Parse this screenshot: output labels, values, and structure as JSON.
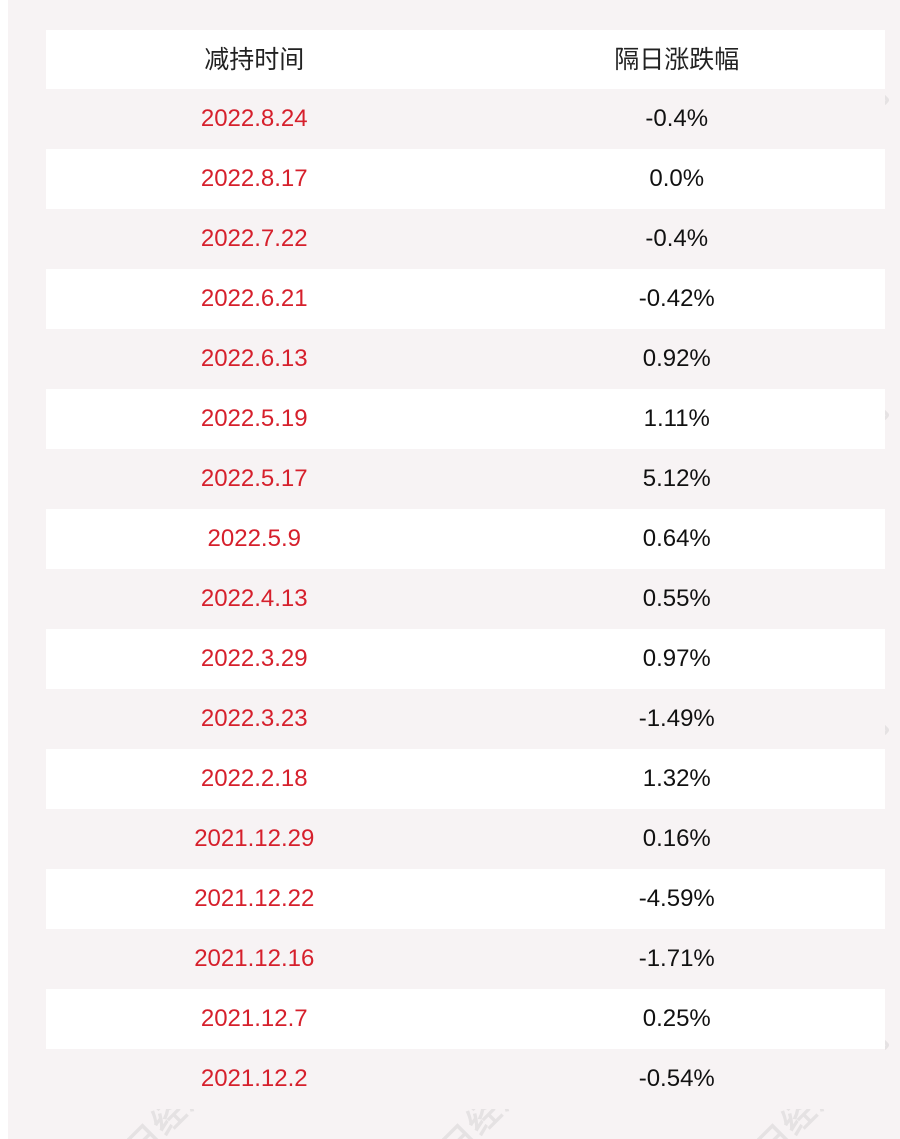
{
  "table": {
    "headers": [
      "减持时间",
      "隔日涨跌幅"
    ],
    "rows": [
      {
        "date": "2022.8.24",
        "change": "-0.4%"
      },
      {
        "date": "2022.8.17",
        "change": "0.0%"
      },
      {
        "date": "2022.7.22",
        "change": "-0.4%"
      },
      {
        "date": "2022.6.21",
        "change": "-0.42%"
      },
      {
        "date": "2022.6.13",
        "change": "0.92%"
      },
      {
        "date": "2022.5.19",
        "change": "1.11%"
      },
      {
        "date": "2022.5.17",
        "change": "5.12%"
      },
      {
        "date": "2022.5.9",
        "change": "0.64%"
      },
      {
        "date": "2022.4.13",
        "change": "0.55%"
      },
      {
        "date": "2022.3.29",
        "change": "0.97%"
      },
      {
        "date": "2022.3.23",
        "change": "-1.49%"
      },
      {
        "date": "2022.2.18",
        "change": "1.32%"
      },
      {
        "date": "2021.12.29",
        "change": "0.16%"
      },
      {
        "date": "2021.12.22",
        "change": "-4.59%"
      },
      {
        "date": "2021.12.16",
        "change": "-1.71%"
      },
      {
        "date": "2021.12.7",
        "change": "0.25%"
      },
      {
        "date": "2021.12.2",
        "change": "-0.54%"
      }
    ]
  },
  "watermark": {
    "text": "每日经济新闻"
  },
  "colors": {
    "date_text": "#d6202c",
    "value_text": "#111111",
    "panel_background": "#f7f3f4",
    "row_background": "#ffffff"
  }
}
